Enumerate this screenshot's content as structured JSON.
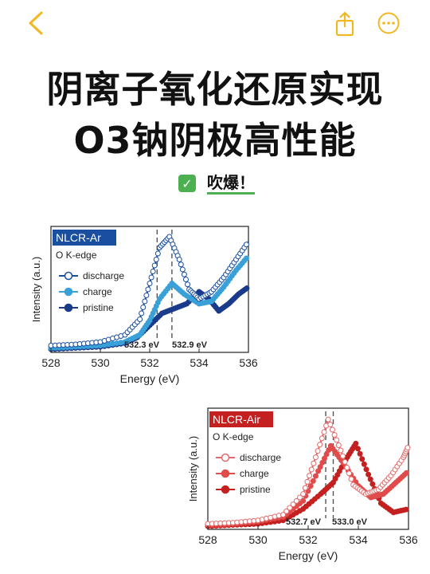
{
  "toolbar": {
    "back_icon": "chevron-left-icon",
    "share_icon": "share-icon",
    "more_icon": "more-icon",
    "accent": "#f2b824"
  },
  "title": {
    "line1": "阴离子氧化还原实现",
    "line2": "O3钠阴极高性能"
  },
  "badge": {
    "text": "吹爆！",
    "check": "✓",
    "color": "#4caf50"
  },
  "chart_data": [
    {
      "type": "line",
      "ylabel": "Intensity (a.u.)",
      "xlabel": "Energy (eV)",
      "xlim": [
        528,
        536
      ],
      "xticks": [
        "528",
        "530",
        "532",
        "534",
        "536"
      ],
      "label_box": "NLCR-Ar",
      "sublabel": "O K-edge",
      "annotations": [
        "532.3 eV",
        "532.9 eV"
      ],
      "vlines": [
        532.3,
        532.9
      ],
      "colors": [
        "#1a4fa0",
        "#3aa1d8",
        "#1a3a8a"
      ],
      "series": [
        {
          "name": "discharge",
          "x": [
            528,
            529,
            530,
            531,
            531.6,
            532,
            532.4,
            532.8,
            533.2,
            533.6,
            534,
            534.5,
            535,
            535.5,
            536
          ],
          "y": [
            0.03,
            0.04,
            0.06,
            0.12,
            0.25,
            0.55,
            0.85,
            0.94,
            0.75,
            0.5,
            0.42,
            0.48,
            0.6,
            0.75,
            0.9
          ]
        },
        {
          "name": "charge",
          "x": [
            528,
            529,
            530,
            531,
            531.6,
            532,
            532.4,
            532.9,
            533.4,
            534,
            534.5,
            535,
            535.5,
            536
          ],
          "y": [
            0.01,
            0.02,
            0.03,
            0.06,
            0.12,
            0.24,
            0.42,
            0.55,
            0.46,
            0.38,
            0.4,
            0.52,
            0.66,
            0.78
          ]
        },
        {
          "name": "pristine",
          "x": [
            528,
            529,
            530,
            531,
            531.5,
            532,
            532.5,
            533,
            533.5,
            534,
            534.4,
            534.8,
            535.2,
            535.6,
            536
          ],
          "y": [
            0.0,
            0.01,
            0.02,
            0.05,
            0.1,
            0.2,
            0.3,
            0.34,
            0.38,
            0.48,
            0.42,
            0.32,
            0.38,
            0.46,
            0.52
          ]
        }
      ]
    },
    {
      "type": "line",
      "ylabel": "Intensity (a.u.)",
      "xlabel": "Energy (eV)",
      "xlim": [
        528,
        536
      ],
      "xticks": [
        "528",
        "530",
        "532",
        "534",
        "536"
      ],
      "label_box": "NLCR-Air",
      "sublabel": "O K-edge",
      "annotations": [
        "532.7 eV",
        "533.0 eV"
      ],
      "vlines": [
        532.7,
        533.0
      ],
      "colors": [
        "#e36a6a",
        "#e04b4b",
        "#c42020"
      ],
      "series": [
        {
          "name": "discharge",
          "x": [
            528,
            529,
            530,
            531,
            531.8,
            532.3,
            532.8,
            533.3,
            533.8,
            534.3,
            534.8,
            535.3,
            535.8,
            536
          ],
          "y": [
            0.02,
            0.03,
            0.05,
            0.1,
            0.28,
            0.6,
            0.93,
            0.66,
            0.36,
            0.28,
            0.32,
            0.44,
            0.6,
            0.7
          ]
        },
        {
          "name": "charge",
          "x": [
            528,
            529,
            530,
            531,
            531.8,
            532.4,
            532.9,
            533.4,
            534,
            534.5,
            535,
            535.5,
            536
          ],
          "y": [
            0.01,
            0.02,
            0.04,
            0.08,
            0.22,
            0.48,
            0.7,
            0.55,
            0.35,
            0.25,
            0.28,
            0.38,
            0.48
          ]
        },
        {
          "name": "pristine",
          "x": [
            528,
            529,
            530,
            531,
            531.8,
            532.5,
            533,
            533.5,
            533.9,
            534.4,
            534.9,
            535.4,
            536
          ],
          "y": [
            0.0,
            0.01,
            0.02,
            0.05,
            0.15,
            0.28,
            0.38,
            0.58,
            0.72,
            0.45,
            0.2,
            0.12,
            0.15
          ]
        }
      ]
    }
  ]
}
